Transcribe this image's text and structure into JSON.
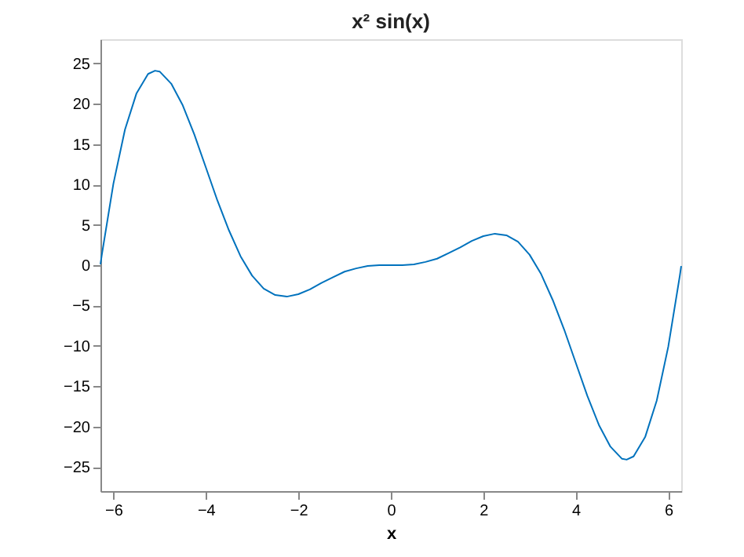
{
  "chart_data": {
    "type": "line",
    "title": "x² sin(x)",
    "xlabel": "x",
    "x": [
      -6.28,
      -6.25,
      -6,
      -5.75,
      -5.5,
      -5.25,
      -5.1,
      -5,
      -4.75,
      -4.5,
      -4.25,
      -4,
      -3.75,
      -3.5,
      -3.25,
      -3,
      -2.75,
      -2.5,
      -2.25,
      -2,
      -1.75,
      -1.5,
      -1.25,
      -1,
      -0.75,
      -0.5,
      -0.25,
      0,
      0.25,
      0.5,
      0.75,
      1,
      1.25,
      1.5,
      1.75,
      2,
      2.25,
      2.5,
      2.75,
      3,
      3.25,
      3.5,
      3.75,
      4,
      4.25,
      4.5,
      4.75,
      5,
      5.1,
      5.25,
      5.5,
      5.75,
      6,
      6.25,
      6.28
    ],
    "series": [
      {
        "color": "#0072bd",
        "values": [
          0.1,
          1.3,
          10.1,
          16.8,
          21.3,
          23.7,
          24.1,
          24.0,
          22.5,
          19.8,
          16.2,
          12.1,
          8.0,
          4.3,
          1.1,
          -1.3,
          -2.9,
          -3.7,
          -3.9,
          -3.6,
          -3.0,
          -2.2,
          -1.5,
          -0.8,
          -0.4,
          -0.1,
          0.0,
          0.0,
          0.0,
          0.1,
          0.4,
          0.8,
          1.5,
          2.2,
          3.0,
          3.6,
          3.9,
          3.7,
          2.9,
          1.3,
          -1.1,
          -4.3,
          -8.0,
          -12.1,
          -16.2,
          -19.8,
          -22.5,
          -24.0,
          -24.1,
          -23.7,
          -21.3,
          -16.8,
          -10.1,
          -1.3,
          -0.1
        ]
      }
    ],
    "xlim": [
      -6.28,
      6.28
    ],
    "ylim": [
      -28,
      28
    ],
    "xticks": [
      -6,
      -4,
      -2,
      0,
      2,
      4,
      6
    ],
    "yticks": [
      -25,
      -20,
      -15,
      -10,
      -5,
      0,
      5,
      10,
      15,
      20,
      25
    ],
    "grid": false,
    "legend": false,
    "marker": "none",
    "line_style": "solid"
  }
}
